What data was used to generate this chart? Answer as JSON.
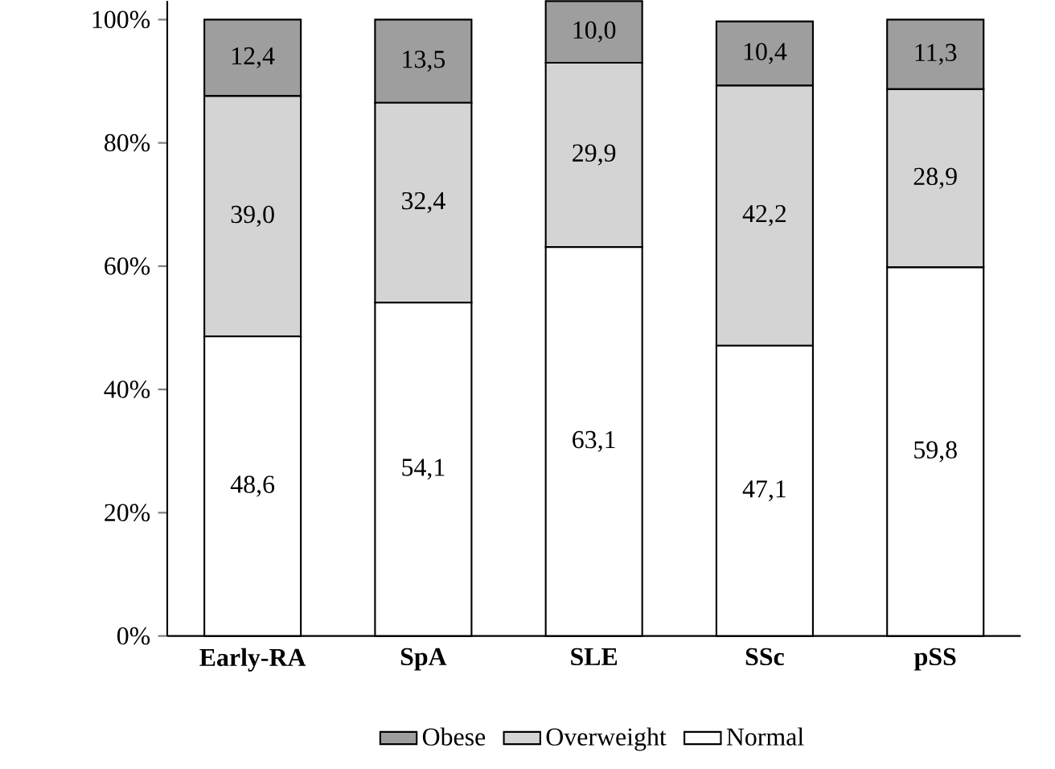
{
  "chart_data": {
    "type": "bar",
    "stacked": true,
    "categories": [
      "Early-RA",
      "SpA",
      "SLE",
      "SSc",
      "pSS"
    ],
    "series": [
      {
        "name": "Normal",
        "color": "#ffffff",
        "values": [
          48.6,
          54.1,
          63.1,
          47.1,
          59.8
        ],
        "value_labels": [
          "48,6",
          "54,1",
          "63,1",
          "47,1",
          "59,8"
        ]
      },
      {
        "name": "Overweight",
        "color": "#d4d4d4",
        "values": [
          39.0,
          32.4,
          29.9,
          42.2,
          28.9
        ],
        "value_labels": [
          "39,0",
          "32,4",
          "29,9",
          "42,2",
          "28,9"
        ]
      },
      {
        "name": "Obese",
        "color": "#9e9e9e",
        "values": [
          12.4,
          13.5,
          10.0,
          10.4,
          11.3
        ],
        "value_labels": [
          "12,4",
          "13,5",
          "10,0",
          "10,4",
          "11,3"
        ]
      }
    ],
    "ylim": [
      0,
      103
    ],
    "yticks": [
      {
        "value": 0,
        "label": "0%"
      },
      {
        "value": 20,
        "label": "20%"
      },
      {
        "value": 40,
        "label": "40%"
      },
      {
        "value": 60,
        "label": "60%"
      },
      {
        "value": 80,
        "label": "80%"
      },
      {
        "value": 100,
        "label": "100%"
      }
    ],
    "grid": false,
    "legend": "bottom"
  }
}
